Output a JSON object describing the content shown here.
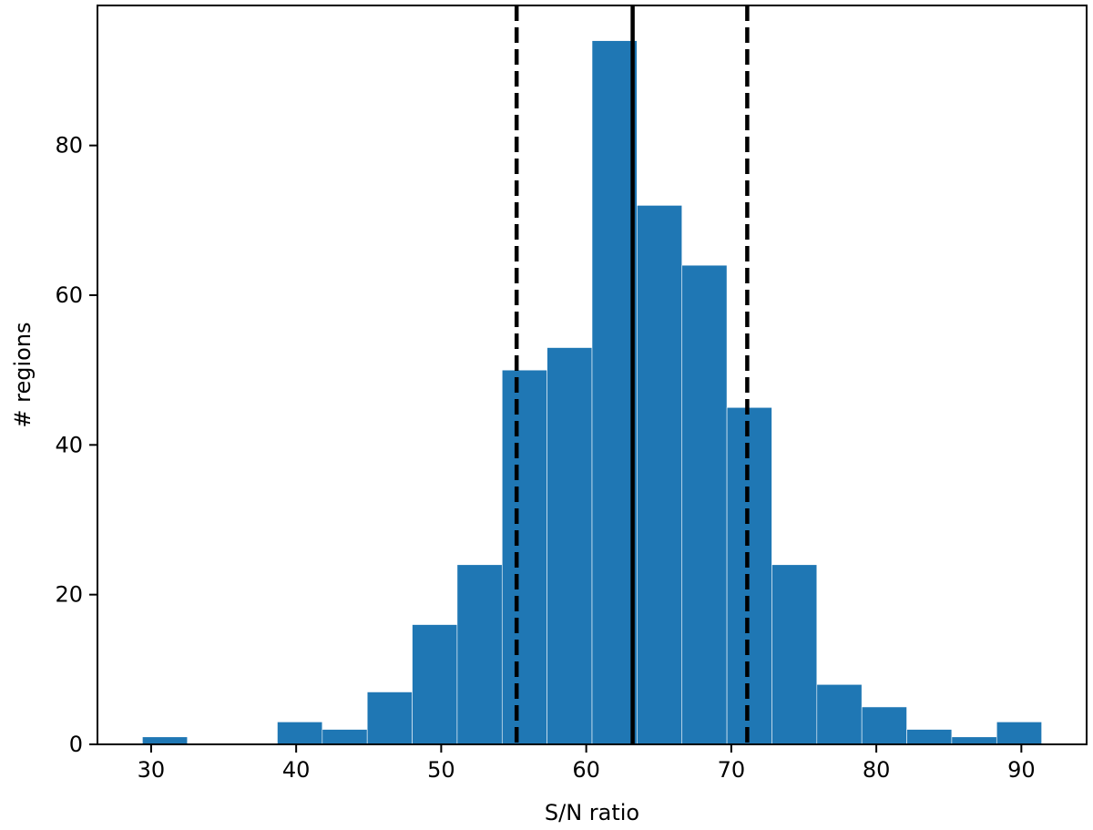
{
  "chart_data": {
    "type": "bar",
    "bin_edges": [
      29.4,
      32.5,
      35.6,
      38.7,
      41.8,
      44.9,
      48.0,
      51.1,
      54.2,
      57.3,
      60.4,
      63.5,
      66.6,
      69.7,
      72.8,
      75.9,
      79.0,
      82.1,
      85.2,
      88.3,
      91.4
    ],
    "values": [
      1,
      0,
      0,
      3,
      2,
      7,
      16,
      24,
      50,
      53,
      94,
      72,
      64,
      45,
      24,
      8,
      5,
      2,
      1,
      3
    ],
    "xlabel": "S/N ratio",
    "ylabel": "# regions",
    "xlim": [
      26.3,
      94.5
    ],
    "ylim": [
      0,
      98.7
    ],
    "xticks": [
      "30",
      "40",
      "50",
      "60",
      "70",
      "80",
      "90"
    ],
    "yticks": [
      "0",
      "20",
      "40",
      "60",
      "80"
    ],
    "reference_lines": [
      {
        "x": 63.2,
        "style": "solid"
      },
      {
        "x": 55.2,
        "style": "dashed"
      },
      {
        "x": 71.1,
        "style": "dashed"
      }
    ],
    "bar_color": "#1f77b4",
    "line_color": "#000000",
    "grid": false
  }
}
